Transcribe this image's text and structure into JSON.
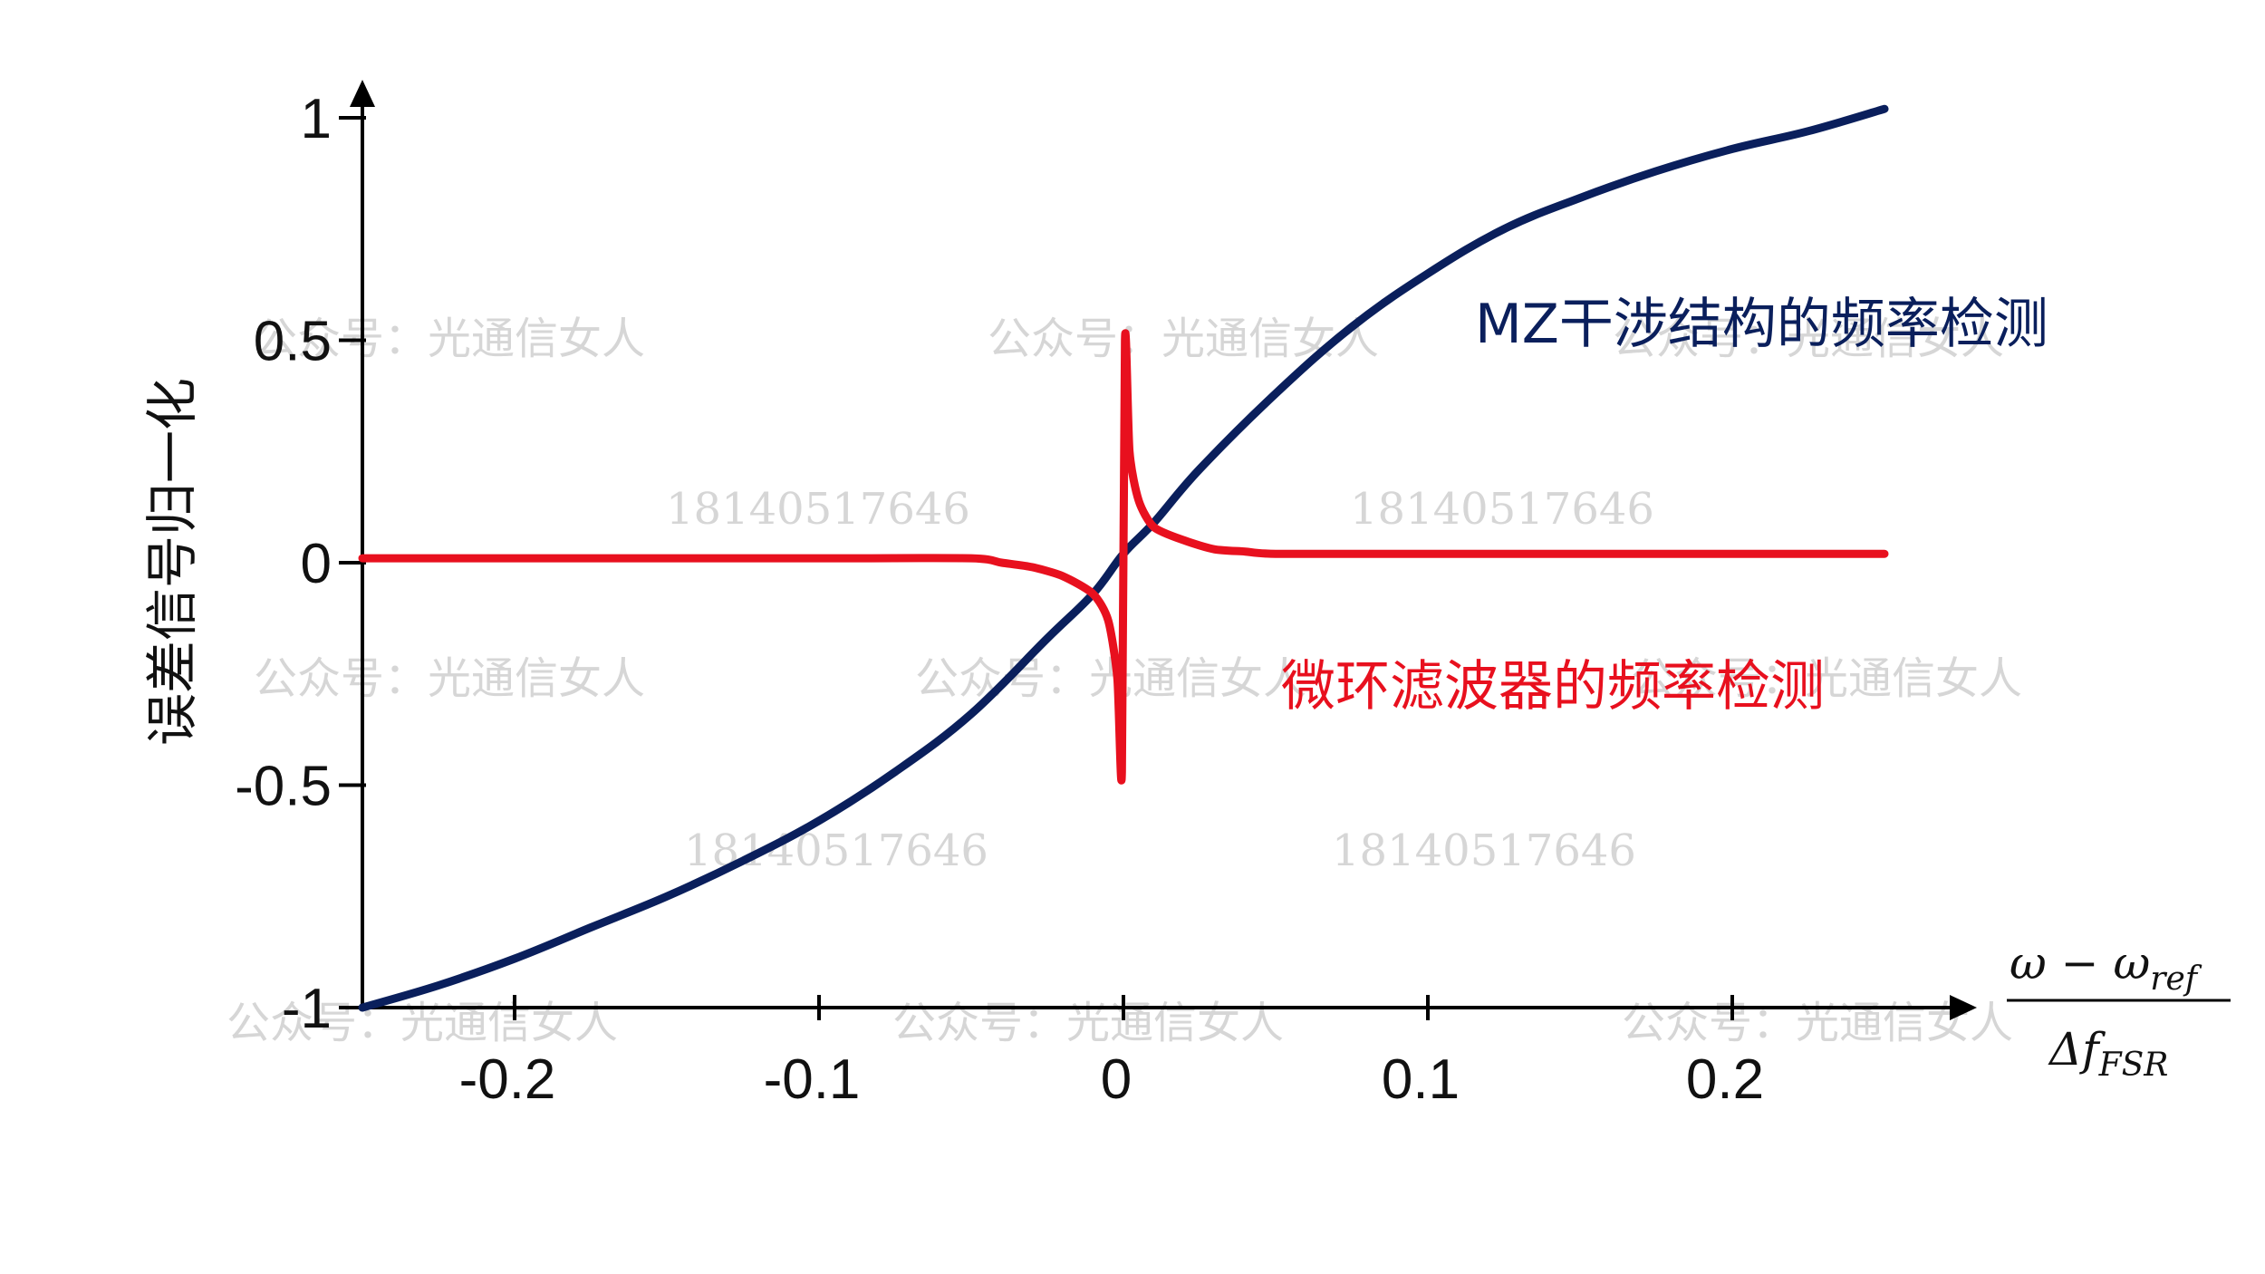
{
  "chart_data": {
    "type": "line",
    "ylabel": "误差信号归一化",
    "xlabel": {
      "numerator": "ω − ω",
      "numerator_sub": "ref",
      "denominator": "Δf",
      "denominator_sub": "FSR"
    },
    "xlim": [
      -0.25,
      0.25
    ],
    "ylim": [
      -1,
      1
    ],
    "x_ticks": [
      -0.2,
      -0.1,
      0,
      0.1,
      0.2
    ],
    "x_tick_labels": [
      "-0.2",
      "-0.1",
      "0",
      "0.1",
      "0.2"
    ],
    "y_ticks": [
      1,
      0.5,
      0,
      -0.5,
      -1
    ],
    "y_tick_labels": [
      "1",
      "0.5",
      "0",
      "-0.5",
      "-1"
    ],
    "grid": false,
    "series": [
      {
        "name": "MZ干涉结构的频率检测",
        "color": "#0a1f5c",
        "x": [
          -0.25,
          -0.225,
          -0.2,
          -0.175,
          -0.15,
          -0.125,
          -0.1,
          -0.075,
          -0.05,
          -0.025,
          -0.01,
          0,
          0.01,
          0.025,
          0.05,
          0.075,
          0.1,
          0.125,
          0.15,
          0.175,
          0.2,
          0.225,
          0.25
        ],
        "y": [
          -1.0,
          -0.95,
          -0.89,
          -0.82,
          -0.75,
          -0.67,
          -0.58,
          -0.47,
          -0.34,
          -0.17,
          -0.07,
          0.02,
          0.09,
          0.21,
          0.38,
          0.53,
          0.65,
          0.75,
          0.82,
          0.88,
          0.93,
          0.97,
          1.02
        ]
      },
      {
        "name": "微环滤波器的频率检测",
        "color": "#e8101e",
        "x": [
          -0.25,
          -0.1,
          -0.05,
          -0.04,
          -0.03,
          -0.02,
          -0.01,
          -0.005,
          -0.002,
          -0.0005,
          0.0005,
          0.002,
          0.005,
          0.01,
          0.02,
          0.03,
          0.04,
          0.05,
          0.1,
          0.25
        ],
        "y": [
          0.01,
          0.01,
          0.01,
          0.0,
          -0.01,
          -0.03,
          -0.07,
          -0.13,
          -0.26,
          -0.47,
          0.5,
          0.25,
          0.14,
          0.08,
          0.05,
          0.03,
          0.025,
          0.02,
          0.02,
          0.02
        ]
      }
    ]
  },
  "watermarks": [
    "公众号：光通信女人",
    "公众号：光通信女人",
    "公众号：光通信女人",
    "公众号：光通信女人",
    "公众号：光通信女人",
    "公众号：光通信女人",
    "公众号：光通信女人",
    "公众号：光通信女人",
    "公众号：光通信女人",
    "18140517646",
    "18140517646",
    "18140517646",
    "18140517646"
  ]
}
